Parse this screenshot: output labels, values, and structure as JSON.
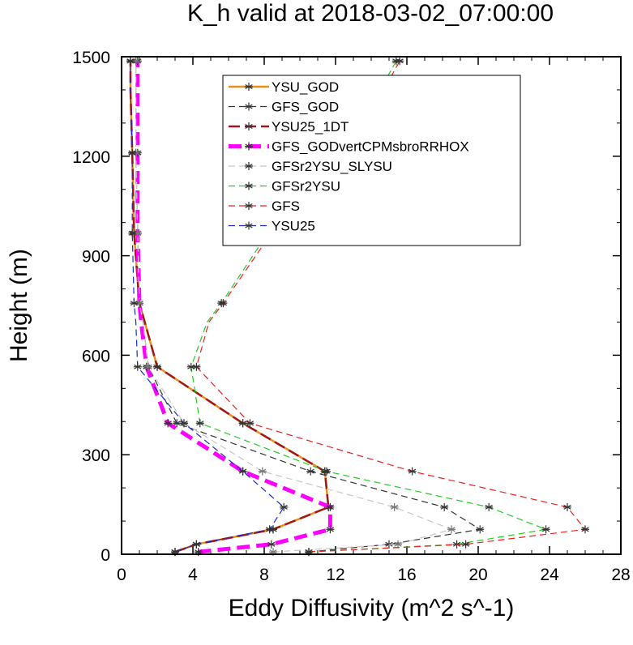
{
  "chart_data": {
    "type": "line",
    "title": "K_h valid at 2018-03-02_07:00:00",
    "xlabel": "Eddy Diffusivity (m^2 s^-1)",
    "ylabel": "Height (m)",
    "xlim": [
      0,
      28
    ],
    "ylim": [
      0,
      1500
    ],
    "x_ticks": [
      0,
      4,
      8,
      12,
      16,
      20,
      24,
      28
    ],
    "y_ticks": [
      0,
      300,
      600,
      900,
      1200,
      1500
    ],
    "grid": false,
    "legend_position": "upper-right",
    "series": [
      {
        "name": "YSU_GOD",
        "color": "#e8901a",
        "dash": "solid",
        "width": 2.5,
        "x": [
          3.0,
          4.2,
          8.5,
          11.6,
          11.4,
          6.8,
          2.0,
          1.3,
          1.0,
          0.7,
          0.6,
          0.5,
          0.5
        ],
        "y": [
          7,
          30,
          75,
          142,
          250,
          395,
          565,
          700,
          757,
          968,
          1210,
          1400,
          1487
        ]
      },
      {
        "name": "GFS_GOD",
        "color": "#333333",
        "dash": "8,5",
        "width": 1.2,
        "x": [
          10.5,
          15.0,
          20.1,
          18.1,
          10.6,
          3.1,
          1.5,
          1.2,
          1.0,
          0.9,
          0.8,
          0.8,
          0.8
        ],
        "y": [
          7,
          30,
          75,
          142,
          250,
          395,
          565,
          700,
          757,
          968,
          1210,
          1400,
          1487
        ]
      },
      {
        "name": "YSU25_1DT",
        "color": "#a01818",
        "dash": "14,6",
        "width": 2.5,
        "x": [
          3.0,
          4.2,
          8.5,
          11.6,
          11.4,
          6.8,
          2.0,
          1.3,
          1.0,
          0.7,
          0.6,
          0.5,
          0.5
        ],
        "y": [
          7,
          30,
          75,
          142,
          250,
          395,
          565,
          700,
          757,
          968,
          1210,
          1400,
          1487
        ]
      },
      {
        "name": "GFS_GODvertCPMsbroRRHOX",
        "color": "#ff00ff",
        "dash": "16,8",
        "width": 5,
        "x": [
          4.3,
          8.4,
          11.7,
          11.7,
          6.8,
          2.6,
          1.4,
          1.1,
          1.0,
          0.9,
          0.9,
          0.9,
          0.9
        ],
        "y": [
          7,
          30,
          75,
          142,
          250,
          395,
          565,
          700,
          757,
          968,
          1210,
          1400,
          1487
        ]
      },
      {
        "name": "GFSr2YSU_SLYSU",
        "color": "#c8c8c8",
        "dash": "8,5",
        "width": 1.2,
        "x": [
          8.5,
          15.5,
          18.5,
          15.3,
          7.9,
          3.5,
          1.5,
          1.2,
          1.0,
          0.9,
          0.8,
          0.8,
          0.8
        ],
        "y": [
          7,
          30,
          75,
          142,
          250,
          395,
          565,
          700,
          757,
          968,
          1210,
          1400,
          1487
        ]
      },
      {
        "name": "GFSr2YSU",
        "color": "#22cc22",
        "dash": "8,5",
        "width": 1.2,
        "x": [
          10.5,
          18.8,
          23.8,
          20.6,
          11.5,
          4.4,
          3.9,
          4.8,
          5.6,
          8.2,
          11.5,
          14.5,
          15.4
        ],
        "y": [
          7,
          30,
          75,
          142,
          250,
          395,
          565,
          700,
          757,
          968,
          1210,
          1400,
          1487
        ]
      },
      {
        "name": "GFS",
        "color": "#ee2020",
        "dash": "8,5",
        "width": 1.2,
        "x": [
          10.5,
          19.3,
          26.0,
          25.0,
          16.3,
          7.2,
          4.2,
          4.9,
          5.7,
          8.4,
          11.8,
          14.7,
          15.6
        ],
        "y": [
          7,
          30,
          75,
          142,
          250,
          395,
          565,
          700,
          757,
          968,
          1210,
          1400,
          1487
        ]
      },
      {
        "name": "YSU25",
        "color": "#1a2acc",
        "dash": "8,5",
        "width": 1.2,
        "x": [
          3.0,
          4.2,
          8.3,
          9.1,
          6.8,
          3.5,
          0.9,
          0.8,
          0.7,
          0.6,
          0.6,
          0.5,
          0.5
        ],
        "y": [
          7,
          30,
          75,
          142,
          250,
          395,
          565,
          700,
          757,
          968,
          1210,
          1400,
          1487
        ]
      }
    ],
    "marker_y": [
      7,
      30,
      75,
      142,
      250,
      395,
      565,
      757,
      968,
      1210,
      1487
    ]
  }
}
